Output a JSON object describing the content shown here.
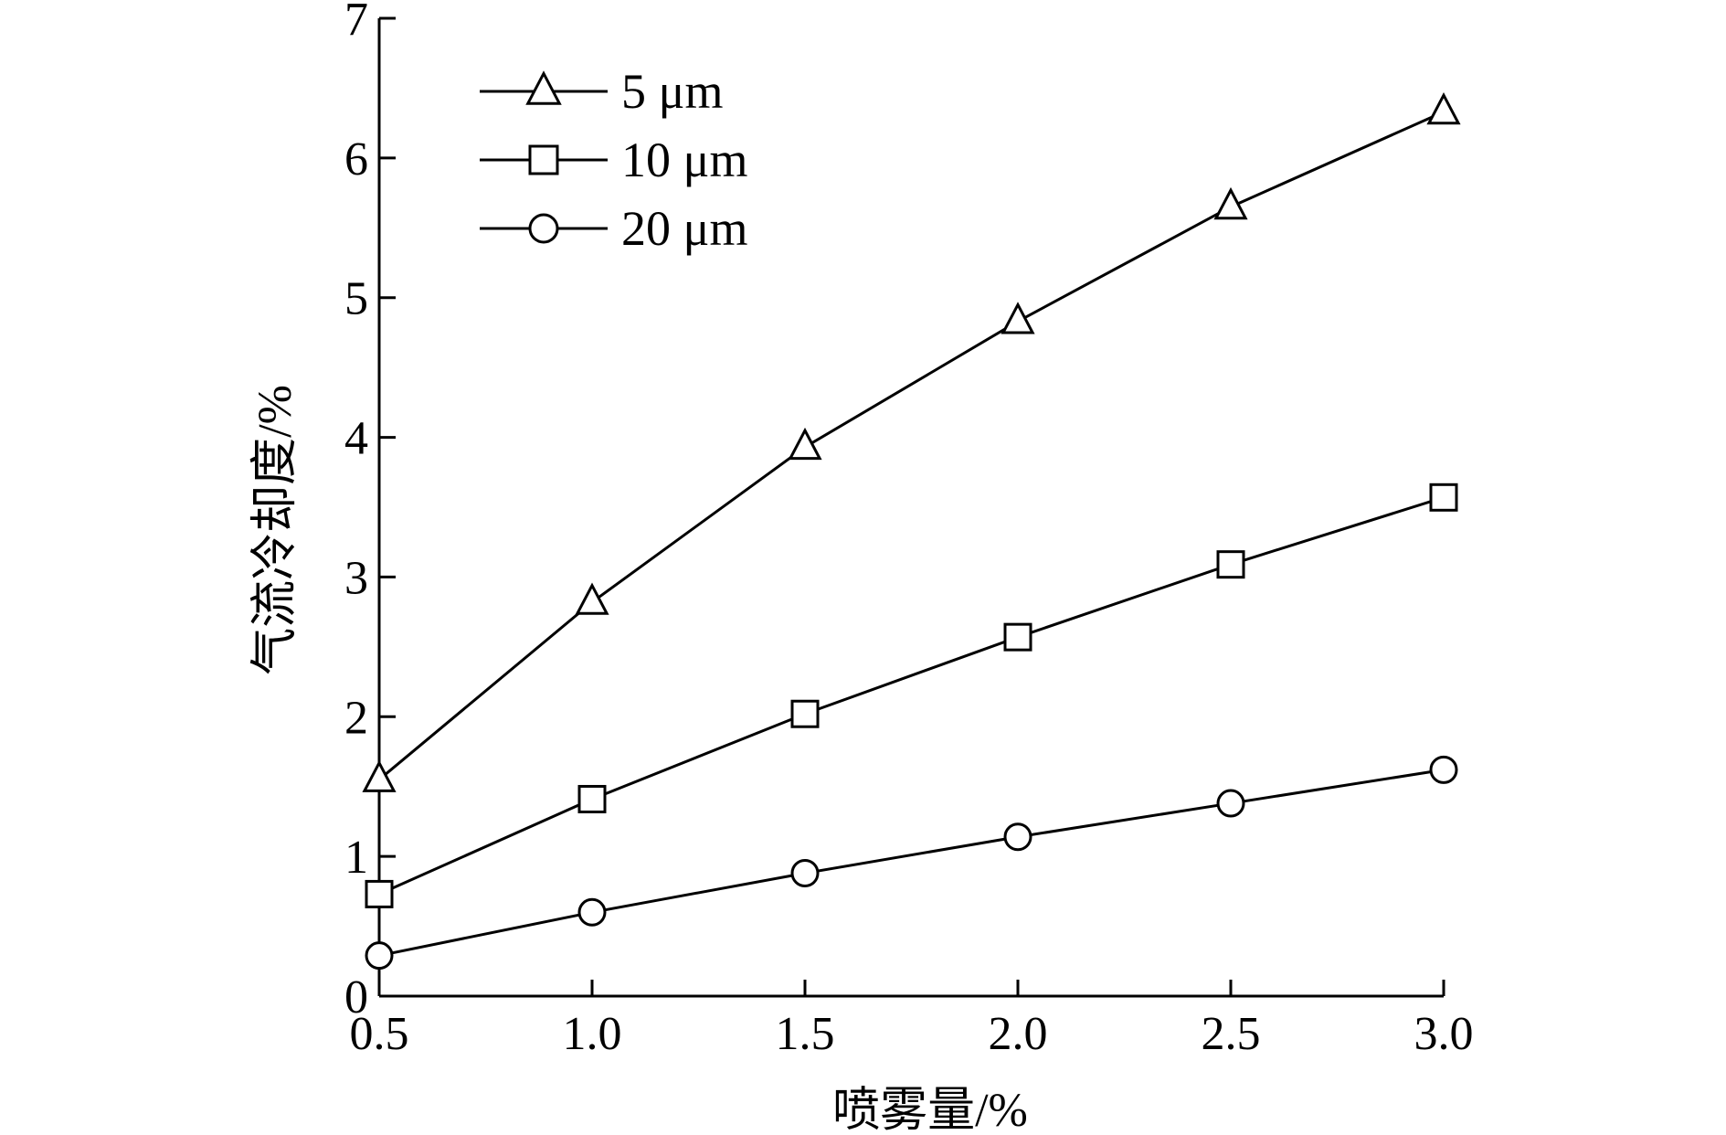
{
  "chart_data": {
    "type": "line",
    "title": "",
    "xlabel": "喷雾量/%",
    "ylabel": "气流冷却度/%",
    "xlim": [
      0.5,
      3.0
    ],
    "ylim": [
      0,
      7
    ],
    "x_ticks": [
      "0.5",
      "1.0",
      "1.5",
      "2.0",
      "2.5",
      "3.0"
    ],
    "y_ticks": [
      "0",
      "1",
      "2",
      "3",
      "4",
      "5",
      "6",
      "7"
    ],
    "x": [
      0.5,
      1.0,
      1.5,
      2.0,
      2.5,
      3.0
    ],
    "grid": false,
    "legend_position": "top-left",
    "series": [
      {
        "name": "5 μm",
        "marker": "triangle",
        "values": [
          1.55,
          2.82,
          3.93,
          4.83,
          5.65,
          6.33
        ]
      },
      {
        "name": "10 μm",
        "marker": "square",
        "values": [
          0.73,
          1.41,
          2.02,
          2.57,
          3.09,
          3.57
        ]
      },
      {
        "name": "20 μm",
        "marker": "circle",
        "values": [
          0.29,
          0.6,
          0.88,
          1.14,
          1.38,
          1.62
        ]
      }
    ],
    "colors": {
      "line": "#000000",
      "marker_fill": "#ffffff"
    }
  }
}
